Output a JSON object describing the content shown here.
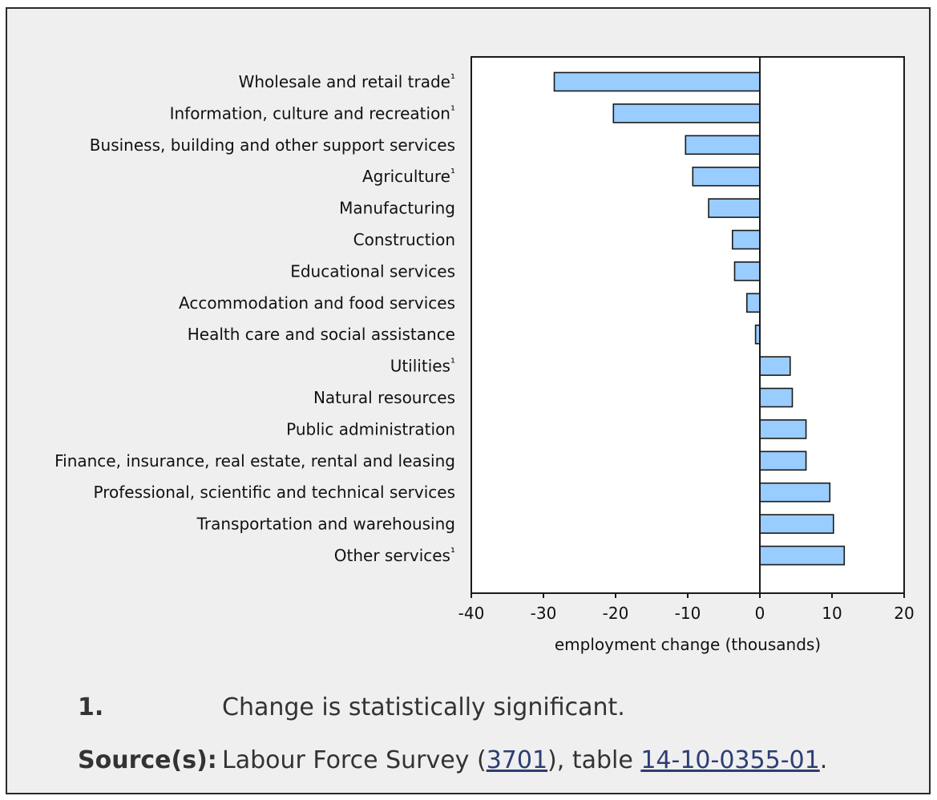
{
  "chart_data": {
    "type": "bar",
    "orientation": "horizontal",
    "xlabel": "employment change (thousands)",
    "xlim": [
      -40,
      20
    ],
    "xticks": [
      -40,
      -30,
      -20,
      -10,
      0,
      10,
      20
    ],
    "bar_color": "#99ccff",
    "bar_edge_color": "#1a1a1a",
    "categories": [
      "Wholesale and retail trade",
      "Information, culture and recreation",
      "Business, building and other support services",
      "Agriculture",
      "Manufacturing",
      "Construction",
      "Educational services",
      "Accommodation and food services",
      "Health care and social assistance",
      "Utilities",
      "Natural resources",
      "Public administration",
      "Finance, insurance, real estate, rental and leasing",
      "Professional, scientific and technical services",
      "Transportation and warehousing",
      "Other services"
    ],
    "footnote_marks": [
      "¹",
      "¹",
      "",
      "¹",
      "",
      "",
      "",
      "",
      "",
      "¹",
      "",
      "",
      "",
      "",
      "",
      "¹"
    ],
    "values": [
      -28.5,
      -20.3,
      -10.3,
      -9.3,
      -7.1,
      -3.8,
      -3.5,
      -1.8,
      -0.6,
      4.2,
      4.5,
      6.4,
      6.4,
      9.7,
      10.2,
      11.7
    ]
  },
  "notes": {
    "footnote_key": "1.",
    "footnote_text": "Change is statistically significant.",
    "source_key": "Source(s):",
    "source_prefix": "Labour Force Survey (",
    "source_link1": "3701",
    "source_middle": "), table ",
    "source_link2": "14-10-0355-01",
    "source_suffix": "."
  }
}
